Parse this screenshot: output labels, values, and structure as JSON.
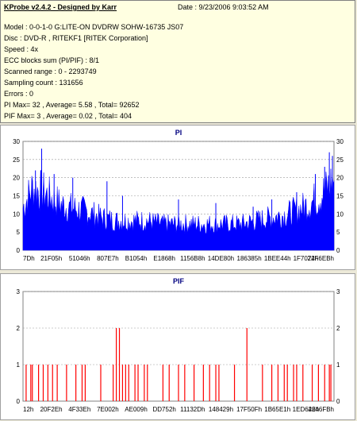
{
  "header": {
    "title": "KProbe v2.4.2 - Designed by Karr",
    "date": "Date : 9/23/2006 9:03:52 AM",
    "lines": [
      "Model : 0-0-1-0 G:LITE-ON DVDRW SOHW-16735 JS07",
      "Disc : DVD-R , RITEKF1 [RITEK Corporation]",
      "Speed : 4x",
      "ECC blocks sum (PI/PIF) : 8/1",
      "Scanned range : 0 - 2293749",
      "Sampling count : 131656",
      "Errors : 0",
      "PI Max= 32 , Average= 5.58 , Total= 92652",
      "PIF Max= 3 , Average= 0.02 , Total= 404"
    ]
  },
  "chart_data": [
    {
      "type": "area",
      "title": "PI",
      "ylim": [
        0,
        30
      ],
      "yticks": [
        0,
        5,
        10,
        15,
        20,
        25,
        30
      ],
      "grid": true,
      "color": "#0000ff",
      "xticks": [
        "7Dh",
        "21F05h",
        "51046h",
        "807E7h",
        "B1054h",
        "E1868h",
        "1156B8h",
        "14DE80h",
        "186385h",
        "1BEE44h",
        "1F7074h",
        "22F6EBh"
      ],
      "envelope": [
        [
          0,
          13
        ],
        [
          0.03,
          19
        ],
        [
          0.06,
          18
        ],
        [
          0.09,
          16
        ],
        [
          0.12,
          14
        ],
        [
          0.15,
          13
        ],
        [
          0.2,
          12
        ],
        [
          0.25,
          10
        ],
        [
          0.3,
          9
        ],
        [
          0.35,
          9
        ],
        [
          0.4,
          9
        ],
        [
          0.45,
          8
        ],
        [
          0.5,
          8
        ],
        [
          0.55,
          8
        ],
        [
          0.6,
          8
        ],
        [
          0.65,
          8
        ],
        [
          0.7,
          8
        ],
        [
          0.75,
          9
        ],
        [
          0.8,
          10
        ],
        [
          0.85,
          11
        ],
        [
          0.9,
          13
        ],
        [
          0.95,
          16
        ],
        [
          0.98,
          19
        ],
        [
          1,
          22
        ]
      ],
      "spikes": [
        [
          0.06,
          28
        ],
        [
          0.04,
          22
        ],
        [
          0.1,
          21
        ],
        [
          0.16,
          20
        ],
        [
          0.27,
          19
        ],
        [
          0.32,
          15
        ],
        [
          0.5,
          14
        ],
        [
          0.62,
          13
        ],
        [
          0.74,
          12
        ],
        [
          0.8,
          14
        ],
        [
          0.88,
          16
        ],
        [
          0.94,
          21
        ],
        [
          0.97,
          23
        ],
        [
          0.985,
          27
        ],
        [
          0.995,
          26
        ]
      ]
    },
    {
      "type": "bar",
      "title": "PIF",
      "ylim": [
        0,
        3
      ],
      "yticks": [
        0,
        1,
        2,
        3
      ],
      "grid": true,
      "color": "#ff0000",
      "xticks": [
        "12h",
        "20F2Eh",
        "4F33Eh",
        "7E002h",
        "AE009h",
        "DD752h",
        "11132Dh",
        "148429h",
        "17F50Fh",
        "1B65E1h",
        "1ED646h",
        "2246FBh"
      ],
      "x": [
        0.01,
        0.025,
        0.03,
        0.05,
        0.065,
        0.08,
        0.095,
        0.11,
        0.14,
        0.17,
        0.19,
        0.2,
        0.25,
        0.29,
        0.3,
        0.31,
        0.32,
        0.33,
        0.34,
        0.36,
        0.37,
        0.39,
        0.4,
        0.45,
        0.47,
        0.5,
        0.52,
        0.55,
        0.58,
        0.6,
        0.62,
        0.63,
        0.68,
        0.72,
        0.77,
        0.8,
        0.82,
        0.84,
        0.85,
        0.87,
        0.88,
        0.9,
        0.93,
        0.95,
        0.97,
        0.985,
        0.99
      ],
      "values": [
        1,
        1,
        1,
        1,
        1,
        1,
        1,
        1,
        1,
        1,
        1,
        1,
        1,
        1,
        2,
        2,
        1,
        1,
        1,
        1,
        1,
        1,
        1,
        1,
        1,
        1,
        1,
        1,
        1,
        1,
        1,
        1,
        1,
        2,
        1,
        1,
        1,
        1,
        1,
        1,
        1,
        1,
        1,
        1,
        1,
        1,
        1
      ]
    }
  ]
}
